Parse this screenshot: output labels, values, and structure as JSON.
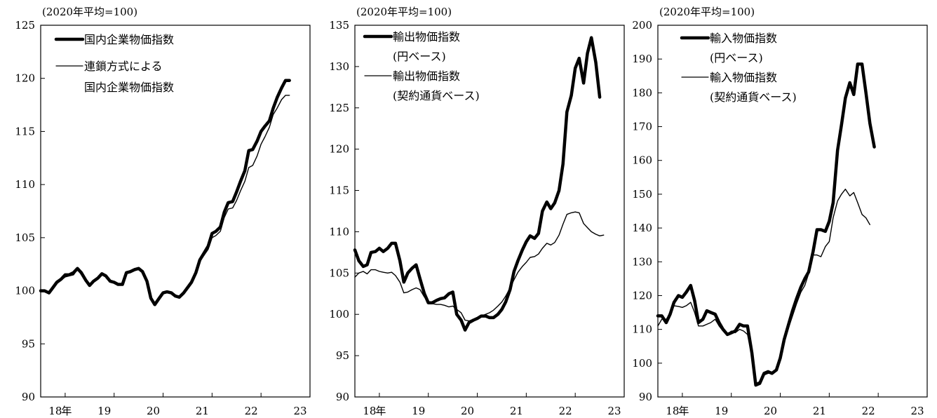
{
  "charts": [
    {
      "unit": "(2020年平均=100)",
      "legend": [
        {
          "lines": [
            "国内企業物価指数"
          ],
          "weight": "thick"
        },
        {
          "lines": [
            "連鎖方式による",
            "国内企業物価指数"
          ],
          "weight": "thin"
        }
      ]
    },
    {
      "unit": "(2020年平均=100)",
      "legend": [
        {
          "lines": [
            "輸出物価指数",
            "(円ベース)"
          ],
          "weight": "thick"
        },
        {
          "lines": [
            "輸出物価指数",
            "(契約通貨ベース)"
          ],
          "weight": "thin"
        }
      ]
    },
    {
      "unit": "(2020年平均=100)",
      "legend": [
        {
          "lines": [
            "輸入物価指数",
            "(円ベース)"
          ],
          "weight": "thick"
        },
        {
          "lines": [
            "輸入物価指数",
            "(契約通貨ベース)"
          ],
          "weight": "thin"
        }
      ]
    }
  ],
  "chart_data": [
    {
      "type": "line",
      "unit_label": "(2020年平均=100)",
      "xlabel": "年",
      "x_tick_labels": [
        "18",
        "19",
        "20",
        "21",
        "22",
        "23"
      ],
      "x_tick_values": [
        2018,
        2019,
        2020,
        2021,
        2022,
        2023
      ],
      "xlim": [
        2017.5,
        2023
      ],
      "ylim": [
        90,
        125
      ],
      "y_ticks": [
        90,
        95,
        100,
        105,
        110,
        115,
        120,
        125
      ],
      "grid": false,
      "legend_position": "top-left",
      "series": [
        {
          "name": "国内企業物価指数",
          "weight": "thick",
          "x": [
            2017.5,
            2017.58,
            2017.67,
            2017.75,
            2017.83,
            2017.92,
            2018.0,
            2018.08,
            2018.17,
            2018.25,
            2018.33,
            2018.42,
            2018.5,
            2018.58,
            2018.67,
            2018.75,
            2018.83,
            2018.92,
            2019.0,
            2019.08,
            2019.17,
            2019.25,
            2019.33,
            2019.42,
            2019.5,
            2019.58,
            2019.67,
            2019.75,
            2019.83,
            2019.92,
            2020.0,
            2020.08,
            2020.17,
            2020.25,
            2020.33,
            2020.42,
            2020.5,
            2020.58,
            2020.67,
            2020.75,
            2020.83,
            2020.92,
            2021.0,
            2021.08,
            2021.17,
            2021.25,
            2021.33,
            2021.42,
            2021.5,
            2021.58,
            2021.67,
            2021.75,
            2021.83,
            2021.92,
            2022.0,
            2022.08,
            2022.17,
            2022.25,
            2022.33,
            2022.42,
            2022.5,
            2022.58,
            2022.67,
            2022.75,
            2022.83,
            2022.92
          ],
          "y": [
            100.0,
            100.0,
            99.8,
            100.3,
            100.8,
            101.1,
            101.5,
            101.5,
            101.7,
            102.1,
            101.7,
            101.0,
            100.5,
            100.9,
            101.2,
            101.6,
            101.4,
            100.9,
            100.8,
            100.6,
            100.6,
            101.7,
            101.8,
            102.0,
            102.1,
            101.8,
            100.9,
            99.3,
            98.7,
            99.3,
            99.8,
            99.9,
            99.8,
            99.5,
            99.4,
            99.8,
            100.3,
            100.8,
            101.7,
            102.9,
            103.5,
            104.2,
            105.4,
            105.6,
            106.0,
            107.4,
            108.3,
            108.4,
            109.3,
            110.3,
            111.3,
            113.2,
            113.3,
            114.1,
            115.0,
            115.5,
            116.0,
            117.2,
            118.2,
            119.1,
            119.8,
            119.8,
            null,
            null,
            null,
            null
          ]
        },
        {
          "name": "連鎖方式による国内企業物価指数",
          "weight": "thin",
          "x": [
            2017.5,
            2017.58,
            2017.67,
            2017.75,
            2017.83,
            2017.92,
            2018.0,
            2018.08,
            2018.17,
            2018.25,
            2018.33,
            2018.42,
            2018.5,
            2018.58,
            2018.67,
            2018.75,
            2018.83,
            2018.92,
            2019.0,
            2019.08,
            2019.17,
            2019.25,
            2019.33,
            2019.42,
            2019.5,
            2019.58,
            2019.67,
            2019.75,
            2019.83,
            2019.92,
            2020.0,
            2020.08,
            2020.17,
            2020.25,
            2020.33,
            2020.42,
            2020.5,
            2020.58,
            2020.67,
            2020.75,
            2020.83,
            2020.92,
            2021.0,
            2021.08,
            2021.17,
            2021.25,
            2021.33,
            2021.42,
            2021.5,
            2021.58,
            2021.67,
            2021.75,
            2021.83,
            2021.92,
            2022.0,
            2022.08,
            2022.17,
            2022.25,
            2022.33,
            2022.42,
            2022.5,
            2022.58
          ],
          "y": [
            99.9,
            100.0,
            99.9,
            100.2,
            100.7,
            101.0,
            101.3,
            101.4,
            101.5,
            102.0,
            101.6,
            100.9,
            100.5,
            100.8,
            101.1,
            101.5,
            101.3,
            100.9,
            100.8,
            100.6,
            100.6,
            101.6,
            101.7,
            101.9,
            102.0,
            101.7,
            100.8,
            99.3,
            98.8,
            99.4,
            99.8,
            99.9,
            99.8,
            99.5,
            99.4,
            99.8,
            100.3,
            100.7,
            101.6,
            102.8,
            103.3,
            103.9,
            105.0,
            105.2,
            105.6,
            106.9,
            107.7,
            107.8,
            108.5,
            109.4,
            110.3,
            111.6,
            111.8,
            112.7,
            113.8,
            114.5,
            115.4,
            116.6,
            117.2,
            118.0,
            118.4,
            118.4
          ]
        }
      ]
    },
    {
      "type": "line",
      "unit_label": "(2020年平均=100)",
      "xlabel": "年",
      "x_tick_labels": [
        "18",
        "19",
        "20",
        "21",
        "22",
        "23"
      ],
      "x_tick_values": [
        2018,
        2019,
        2020,
        2021,
        2022,
        2023
      ],
      "xlim": [
        2017.5,
        2023
      ],
      "ylim": [
        90,
        135
      ],
      "y_ticks": [
        90,
        95,
        100,
        105,
        110,
        115,
        120,
        125,
        130,
        135
      ],
      "grid": false,
      "legend_position": "top-left",
      "series": [
        {
          "name": "輸出物価指数(円ベース)",
          "weight": "thick",
          "x": [
            2017.5,
            2017.58,
            2017.67,
            2017.75,
            2017.83,
            2017.92,
            2018.0,
            2018.08,
            2018.17,
            2018.25,
            2018.33,
            2018.42,
            2018.5,
            2018.58,
            2018.67,
            2018.75,
            2018.83,
            2018.92,
            2019.0,
            2019.08,
            2019.17,
            2019.25,
            2019.33,
            2019.42,
            2019.5,
            2019.58,
            2019.67,
            2019.75,
            2019.83,
            2019.92,
            2020.0,
            2020.08,
            2020.17,
            2020.25,
            2020.33,
            2020.42,
            2020.5,
            2020.58,
            2020.67,
            2020.75,
            2020.83,
            2020.92,
            2021.0,
            2021.08,
            2021.17,
            2021.25,
            2021.33,
            2021.42,
            2021.5,
            2021.58,
            2021.67,
            2021.75,
            2021.83,
            2021.92,
            2022.0,
            2022.08,
            2022.17,
            2022.25,
            2022.33,
            2022.42,
            2022.5
          ],
          "y": [
            107.8,
            106.5,
            105.8,
            106.0,
            107.5,
            107.6,
            108.0,
            107.6,
            108.0,
            108.6,
            108.6,
            106.5,
            103.9,
            105.0,
            105.6,
            106.0,
            104.3,
            102.5,
            101.4,
            101.4,
            101.7,
            101.9,
            102.0,
            102.5,
            102.7,
            100.0,
            99.3,
            98.1,
            99.0,
            99.3,
            99.5,
            99.8,
            99.8,
            99.6,
            99.6,
            100.0,
            100.6,
            101.5,
            103.0,
            105.2,
            106.5,
            107.8,
            108.8,
            109.5,
            109.2,
            109.8,
            112.5,
            113.6,
            112.8,
            113.5,
            115.0,
            118.2,
            124.5,
            126.5,
            129.8,
            131.0,
            128.0,
            131.6,
            133.5,
            130.5,
            126.3
          ]
        },
        {
          "name": "輸出物価指数(契約通貨ベース)",
          "weight": "thin",
          "x": [
            2017.5,
            2017.58,
            2017.67,
            2017.75,
            2017.83,
            2017.92,
            2018.0,
            2018.08,
            2018.17,
            2018.25,
            2018.33,
            2018.42,
            2018.5,
            2018.58,
            2018.67,
            2018.75,
            2018.83,
            2018.92,
            2019.0,
            2019.08,
            2019.17,
            2019.25,
            2019.33,
            2019.42,
            2019.5,
            2019.58,
            2019.67,
            2019.75,
            2019.83,
            2019.92,
            2020.0,
            2020.08,
            2020.17,
            2020.25,
            2020.33,
            2020.42,
            2020.5,
            2020.58,
            2020.67,
            2020.75,
            2020.83,
            2020.92,
            2021.0,
            2021.08,
            2021.17,
            2021.25,
            2021.33,
            2021.42,
            2021.5,
            2021.58,
            2021.67,
            2021.75,
            2021.83,
            2021.92,
            2022.0,
            2022.08,
            2022.17,
            2022.25,
            2022.33,
            2022.42,
            2022.5,
            2022.58
          ],
          "y": [
            104.5,
            105.0,
            105.2,
            104.9,
            105.4,
            105.4,
            105.2,
            105.1,
            105.0,
            105.1,
            104.7,
            103.9,
            102.6,
            102.7,
            103.0,
            103.2,
            103.0,
            102.1,
            101.5,
            101.3,
            101.2,
            101.2,
            101.1,
            100.9,
            101.0,
            100.6,
            100.2,
            99.3,
            99.2,
            99.4,
            99.6,
            99.8,
            100.0,
            100.2,
            100.5,
            101.0,
            101.5,
            102.2,
            103.2,
            104.2,
            105.1,
            105.8,
            106.3,
            106.9,
            107.0,
            107.3,
            108.0,
            108.6,
            108.4,
            108.7,
            109.6,
            110.9,
            112.1,
            112.3,
            112.4,
            112.3,
            111.0,
            110.5,
            110.0,
            109.7,
            109.5,
            109.6
          ]
        }
      ]
    },
    {
      "type": "line",
      "unit_label": "(2020年平均=100)",
      "xlabel": "年",
      "x_tick_labels": [
        "18",
        "19",
        "20",
        "21",
        "22",
        "23"
      ],
      "x_tick_values": [
        2018,
        2019,
        2020,
        2021,
        2022,
        2023
      ],
      "xlim": [
        2017.5,
        2023
      ],
      "ylim": [
        90,
        200
      ],
      "y_ticks": [
        90,
        100,
        110,
        120,
        130,
        140,
        150,
        160,
        170,
        180,
        190,
        200
      ],
      "grid": false,
      "legend_position": "top-left",
      "series": [
        {
          "name": "輸入物価指数(円ベース)",
          "weight": "thick",
          "x": [
            2017.5,
            2017.58,
            2017.67,
            2017.75,
            2017.83,
            2017.92,
            2018.0,
            2018.08,
            2018.17,
            2018.25,
            2018.33,
            2018.42,
            2018.5,
            2018.58,
            2018.67,
            2018.75,
            2018.83,
            2018.92,
            2019.0,
            2019.08,
            2019.17,
            2019.25,
            2019.33,
            2019.42,
            2019.5,
            2019.58,
            2019.67,
            2019.75,
            2019.83,
            2019.92,
            2020.0,
            2020.08,
            2020.17,
            2020.25,
            2020.33,
            2020.42,
            2020.5,
            2020.58,
            2020.67,
            2020.75,
            2020.83,
            2020.92,
            2021.0,
            2021.08,
            2021.17,
            2021.25,
            2021.33,
            2021.42,
            2021.5,
            2021.58,
            2021.67,
            2021.75,
            2021.83,
            2021.92,
            2022.0,
            2022.08,
            2022.17,
            2022.25,
            2022.33,
            2022.42,
            2022.5
          ],
          "y": [
            114.0,
            114.0,
            112.0,
            114.5,
            118.0,
            120.0,
            119.5,
            121.0,
            123.0,
            118.5,
            112.0,
            113.0,
            115.5,
            115.0,
            114.5,
            112.0,
            110.0,
            108.5,
            109.0,
            109.5,
            111.5,
            111.0,
            111.0,
            103.0,
            93.5,
            94.0,
            97.0,
            97.5,
            97.0,
            98.0,
            101.5,
            107.0,
            111.5,
            115.5,
            119.0,
            122.5,
            125.0,
            127.0,
            133.0,
            139.5,
            139.5,
            139.0,
            142.0,
            147.5,
            163.0,
            170.5,
            178.5,
            183.0,
            179.5,
            188.5,
            188.5,
            180.0,
            171.0,
            164.0,
            null,
            null,
            null,
            null,
            null,
            null,
            null
          ]
        },
        {
          "name": "輸入物価指数(契約通貨ベース)",
          "weight": "thin",
          "x": [
            2017.5,
            2017.58,
            2017.67,
            2017.75,
            2017.83,
            2017.92,
            2018.0,
            2018.08,
            2018.17,
            2018.25,
            2018.33,
            2018.42,
            2018.5,
            2018.58,
            2018.67,
            2018.75,
            2018.83,
            2018.92,
            2019.0,
            2019.08,
            2019.17,
            2019.25,
            2019.33,
            2019.42,
            2019.5,
            2019.58,
            2019.67,
            2019.75,
            2019.83,
            2019.92,
            2020.0,
            2020.08,
            2020.17,
            2020.25,
            2020.33,
            2020.42,
            2020.5,
            2020.58,
            2020.67,
            2020.75,
            2020.83,
            2020.92,
            2021.0,
            2021.08,
            2021.17,
            2021.25,
            2021.33,
            2021.42,
            2021.5,
            2021.58,
            2021.67,
            2021.75,
            2021.83,
            2021.92
          ],
          "y": [
            111.0,
            113.0,
            113.0,
            114.5,
            117.0,
            116.8,
            116.5,
            117.0,
            118.0,
            115.0,
            111.0,
            111.0,
            111.5,
            112.0,
            113.0,
            111.0,
            109.5,
            108.5,
            109.5,
            109.0,
            110.0,
            109.5,
            108.5,
            102.0,
            94.0,
            94.5,
            96.5,
            97.0,
            97.0,
            98.0,
            101.0,
            106.0,
            110.5,
            114.0,
            117.5,
            121.0,
            123.0,
            126.5,
            132.0,
            132.0,
            131.5,
            134.5,
            136.0,
            143.0,
            148.0,
            150.0,
            151.5,
            149.5,
            150.5,
            147.5,
            144.0,
            143.0,
            141.0,
            null
          ]
        }
      ]
    }
  ]
}
